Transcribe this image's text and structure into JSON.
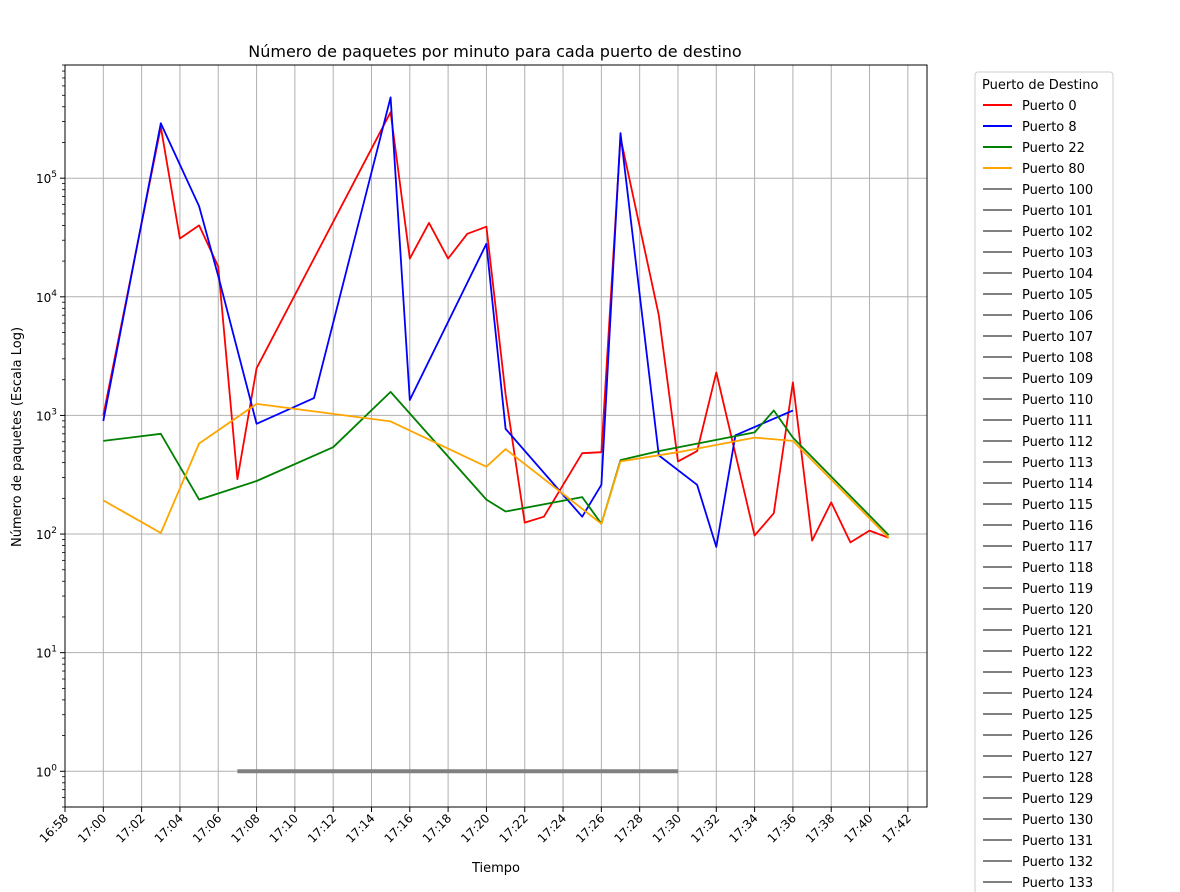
{
  "chart_data": {
    "type": "line",
    "title": "Número de paquetes por minuto para cada puerto de destino",
    "xlabel": "Tiempo",
    "ylabel": "Número de paquetes (Escala Log)",
    "y_scale": "log",
    "ylim": [
      0.5,
      900000
    ],
    "xlim": [
      "16:58",
      "17:43"
    ],
    "x_ticks": [
      "16:58",
      "17:00",
      "17:02",
      "17:04",
      "17:06",
      "17:08",
      "17:10",
      "17:12",
      "17:14",
      "17:16",
      "17:18",
      "17:20",
      "17:22",
      "17:24",
      "17:26",
      "17:28",
      "17:30",
      "17:32",
      "17:34",
      "17:36",
      "17:38",
      "17:40",
      "17:42"
    ],
    "y_ticks": [
      {
        "value": 1,
        "base": "10",
        "exp": "0"
      },
      {
        "value": 10,
        "base": "10",
        "exp": "1"
      },
      {
        "value": 100,
        "base": "10",
        "exp": "2"
      },
      {
        "value": 1000,
        "base": "10",
        "exp": "3"
      },
      {
        "value": 10000,
        "base": "10",
        "exp": "4"
      },
      {
        "value": 100000,
        "base": "10",
        "exp": "5"
      }
    ],
    "grid": true,
    "legend": {
      "title": "Puerto de Destino",
      "placement": "outside-right",
      "entries": [
        "Puerto 0",
        "Puerto 8",
        "Puerto 22",
        "Puerto 80",
        "Puerto 100",
        "Puerto 101",
        "Puerto 102",
        "Puerto 103",
        "Puerto 104",
        "Puerto 105",
        "Puerto 106",
        "Puerto 107",
        "Puerto 108",
        "Puerto 109",
        "Puerto 110",
        "Puerto 111",
        "Puerto 112",
        "Puerto 113",
        "Puerto 114",
        "Puerto 115",
        "Puerto 116",
        "Puerto 117",
        "Puerto 118",
        "Puerto 119",
        "Puerto 120",
        "Puerto 121",
        "Puerto 122",
        "Puerto 123",
        "Puerto 124",
        "Puerto 125",
        "Puerto 126",
        "Puerto 127",
        "Puerto 128",
        "Puerto 129",
        "Puerto 130",
        "Puerto 131",
        "Puerto 132",
        "Puerto 133"
      ]
    },
    "series": [
      {
        "name": "Puerto 0",
        "color": "#ff0000",
        "x": [
          "17:00",
          "17:03",
          "17:04",
          "17:05",
          "17:06",
          "17:07",
          "17:08",
          "17:15",
          "17:16",
          "17:17",
          "17:18",
          "17:19",
          "17:20",
          "17:21",
          "17:22",
          "17:23",
          "17:25",
          "17:26",
          "17:27",
          "17:29",
          "17:30",
          "17:31",
          "17:32",
          "17:34",
          "17:35",
          "17:36",
          "17:37",
          "17:38",
          "17:39",
          "17:40",
          "17:41"
        ],
        "y": [
          1000,
          270000,
          31000,
          40000,
          18000,
          290,
          2500,
          360000,
          21000,
          42000,
          21000,
          34000,
          39000,
          1500,
          125,
          140,
          480,
          490,
          220000,
          7000,
          410,
          500,
          2300,
          97,
          150,
          1900,
          88,
          185,
          85,
          107,
          93
        ]
      },
      {
        "name": "Puerto 8",
        "color": "#0000ff",
        "x": [
          "17:00",
          "17:03",
          "17:05",
          "17:06",
          "17:08",
          "17:11",
          "17:15",
          "17:16",
          "17:20",
          "17:21",
          "17:25",
          "17:26",
          "17:27",
          "17:29",
          "17:31",
          "17:32",
          "17:33",
          "17:36"
        ],
        "y": [
          900,
          290000,
          58000,
          15000,
          850,
          1400,
          480000,
          1350,
          28000,
          770,
          140,
          260,
          240000,
          460,
          260,
          78,
          680,
          1100
        ]
      },
      {
        "name": "Puerto 22",
        "color": "#008000",
        "x": [
          "17:00",
          "17:03",
          "17:05",
          "17:08",
          "17:12",
          "17:15",
          "17:20",
          "17:21",
          "17:25",
          "17:26",
          "17:27",
          "17:29",
          "17:34",
          "17:35",
          "17:36",
          "17:41"
        ],
        "y": [
          610,
          700,
          195,
          280,
          540,
          1580,
          195,
          155,
          205,
          122,
          420,
          500,
          720,
          1100,
          650,
          98
        ]
      },
      {
        "name": "Puerto 80",
        "color": "#ffa500",
        "x": [
          "17:00",
          "17:03",
          "17:05",
          "17:08",
          "17:15",
          "17:20",
          "17:21",
          "17:26",
          "17:27",
          "17:30",
          "17:34",
          "17:36",
          "17:41"
        ],
        "y": [
          192,
          102,
          580,
          1250,
          890,
          370,
          520,
          122,
          410,
          490,
          650,
          610,
          93
        ]
      },
      {
        "name": "Puerto 100..133",
        "color": "#808080",
        "x": [
          "17:07",
          "17:30"
        ],
        "y": [
          1,
          1
        ]
      }
    ]
  }
}
